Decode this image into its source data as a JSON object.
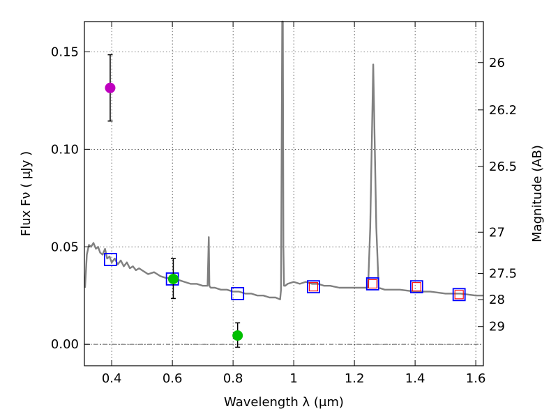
{
  "chart_data": {
    "type": "scatter",
    "xlabel": "Wavelength  λ (μm)",
    "ylabel": "Flux  Fν  ( μJy )",
    "ylabel_right": "Magnitude (AB)",
    "xlim": [
      0.31,
      1.625
    ],
    "ylim": [
      -0.011,
      0.1655
    ],
    "x_ticks": [
      0.4,
      0.6,
      0.8,
      1.0,
      1.2,
      1.4,
      1.6
    ],
    "x_tick_labels": [
      "0.4",
      "0.6",
      "0.8",
      "1",
      "1.2",
      "1.4",
      "1.6"
    ],
    "y_ticks": [
      0.0,
      0.05,
      0.1,
      0.15
    ],
    "y_tick_labels": [
      "0.00",
      "0.05",
      "0.10",
      "0.15"
    ],
    "right_ticks": [
      {
        "label": "26",
        "flux": 0.1445
      },
      {
        "label": "26.2",
        "flux": 0.1202
      },
      {
        "label": "26.5",
        "flux": 0.0912
      },
      {
        "label": "27",
        "flux": 0.0575
      },
      {
        "label": "27.5",
        "flux": 0.0363
      },
      {
        "label": "28",
        "flux": 0.0229
      },
      {
        "label": "29",
        "flux": 0.0091
      }
    ],
    "grid": true,
    "zero_line": 0.0,
    "model_spectrum": {
      "color": "#808080",
      "x": [
        0.312,
        0.318,
        0.325,
        0.332,
        0.34,
        0.348,
        0.355,
        0.362,
        0.37,
        0.378,
        0.385,
        0.393,
        0.4,
        0.41,
        0.42,
        0.43,
        0.44,
        0.45,
        0.46,
        0.47,
        0.48,
        0.49,
        0.5,
        0.52,
        0.54,
        0.56,
        0.58,
        0.6,
        0.62,
        0.64,
        0.66,
        0.68,
        0.7,
        0.716,
        0.72,
        0.722,
        0.726,
        0.74,
        0.76,
        0.78,
        0.8,
        0.82,
        0.84,
        0.86,
        0.88,
        0.9,
        0.92,
        0.94,
        0.955,
        0.958,
        0.962,
        0.964,
        0.966,
        0.968,
        0.972,
        0.98,
        1.0,
        1.02,
        1.04,
        1.06,
        1.08,
        1.1,
        1.12,
        1.15,
        1.18,
        1.2,
        1.22,
        1.245,
        1.252,
        1.262,
        1.272,
        1.28,
        1.3,
        1.35,
        1.4,
        1.45,
        1.5,
        1.55,
        1.6,
        1.625
      ],
      "y": [
        0.029,
        0.046,
        0.051,
        0.05,
        0.052,
        0.049,
        0.05,
        0.047,
        0.046,
        0.049,
        0.044,
        0.045,
        0.042,
        0.044,
        0.041,
        0.043,
        0.04,
        0.042,
        0.039,
        0.04,
        0.038,
        0.039,
        0.038,
        0.036,
        0.037,
        0.035,
        0.034,
        0.034,
        0.033,
        0.032,
        0.031,
        0.031,
        0.03,
        0.03,
        0.055,
        0.03,
        0.029,
        0.029,
        0.028,
        0.028,
        0.027,
        0.027,
        0.026,
        0.026,
        0.025,
        0.025,
        0.024,
        0.024,
        0.023,
        0.028,
        0.1655,
        0.1655,
        0.05,
        0.03,
        0.03,
        0.031,
        0.032,
        0.031,
        0.032,
        0.031,
        0.031,
        0.03,
        0.03,
        0.029,
        0.029,
        0.029,
        0.029,
        0.029,
        0.06,
        0.1435,
        0.06,
        0.029,
        0.028,
        0.028,
        0.027,
        0.027,
        0.026,
        0.026,
        0.025,
        0.025
      ]
    },
    "series": [
      {
        "marker": "square-open",
        "color": "#0000ff",
        "x": [
          0.396,
          0.6,
          0.815,
          1.065,
          1.26,
          1.405,
          1.545
        ],
        "y": [
          0.0435,
          0.0335,
          0.026,
          0.0295,
          0.031,
          0.0295,
          0.0255
        ]
      },
      {
        "marker": "square-open-small",
        "color": "#ff0000",
        "x": [
          1.065,
          1.26,
          1.405,
          1.545
        ],
        "y": [
          0.0295,
          0.031,
          0.0295,
          0.0255
        ]
      },
      {
        "marker": "circle",
        "color": "#bf00bf",
        "x": [
          0.395
        ],
        "y": [
          0.1315
        ],
        "yerr_low": [
          0.1145
        ],
        "yerr_high": [
          0.1485
        ]
      },
      {
        "marker": "circle",
        "color": "#00bf00",
        "x": [
          0.603,
          0.815
        ],
        "y": [
          0.0335,
          0.0045
        ],
        "yerr_low": [
          0.0235,
          -0.0015
        ],
        "yerr_high": [
          0.044,
          0.011
        ]
      }
    ]
  }
}
